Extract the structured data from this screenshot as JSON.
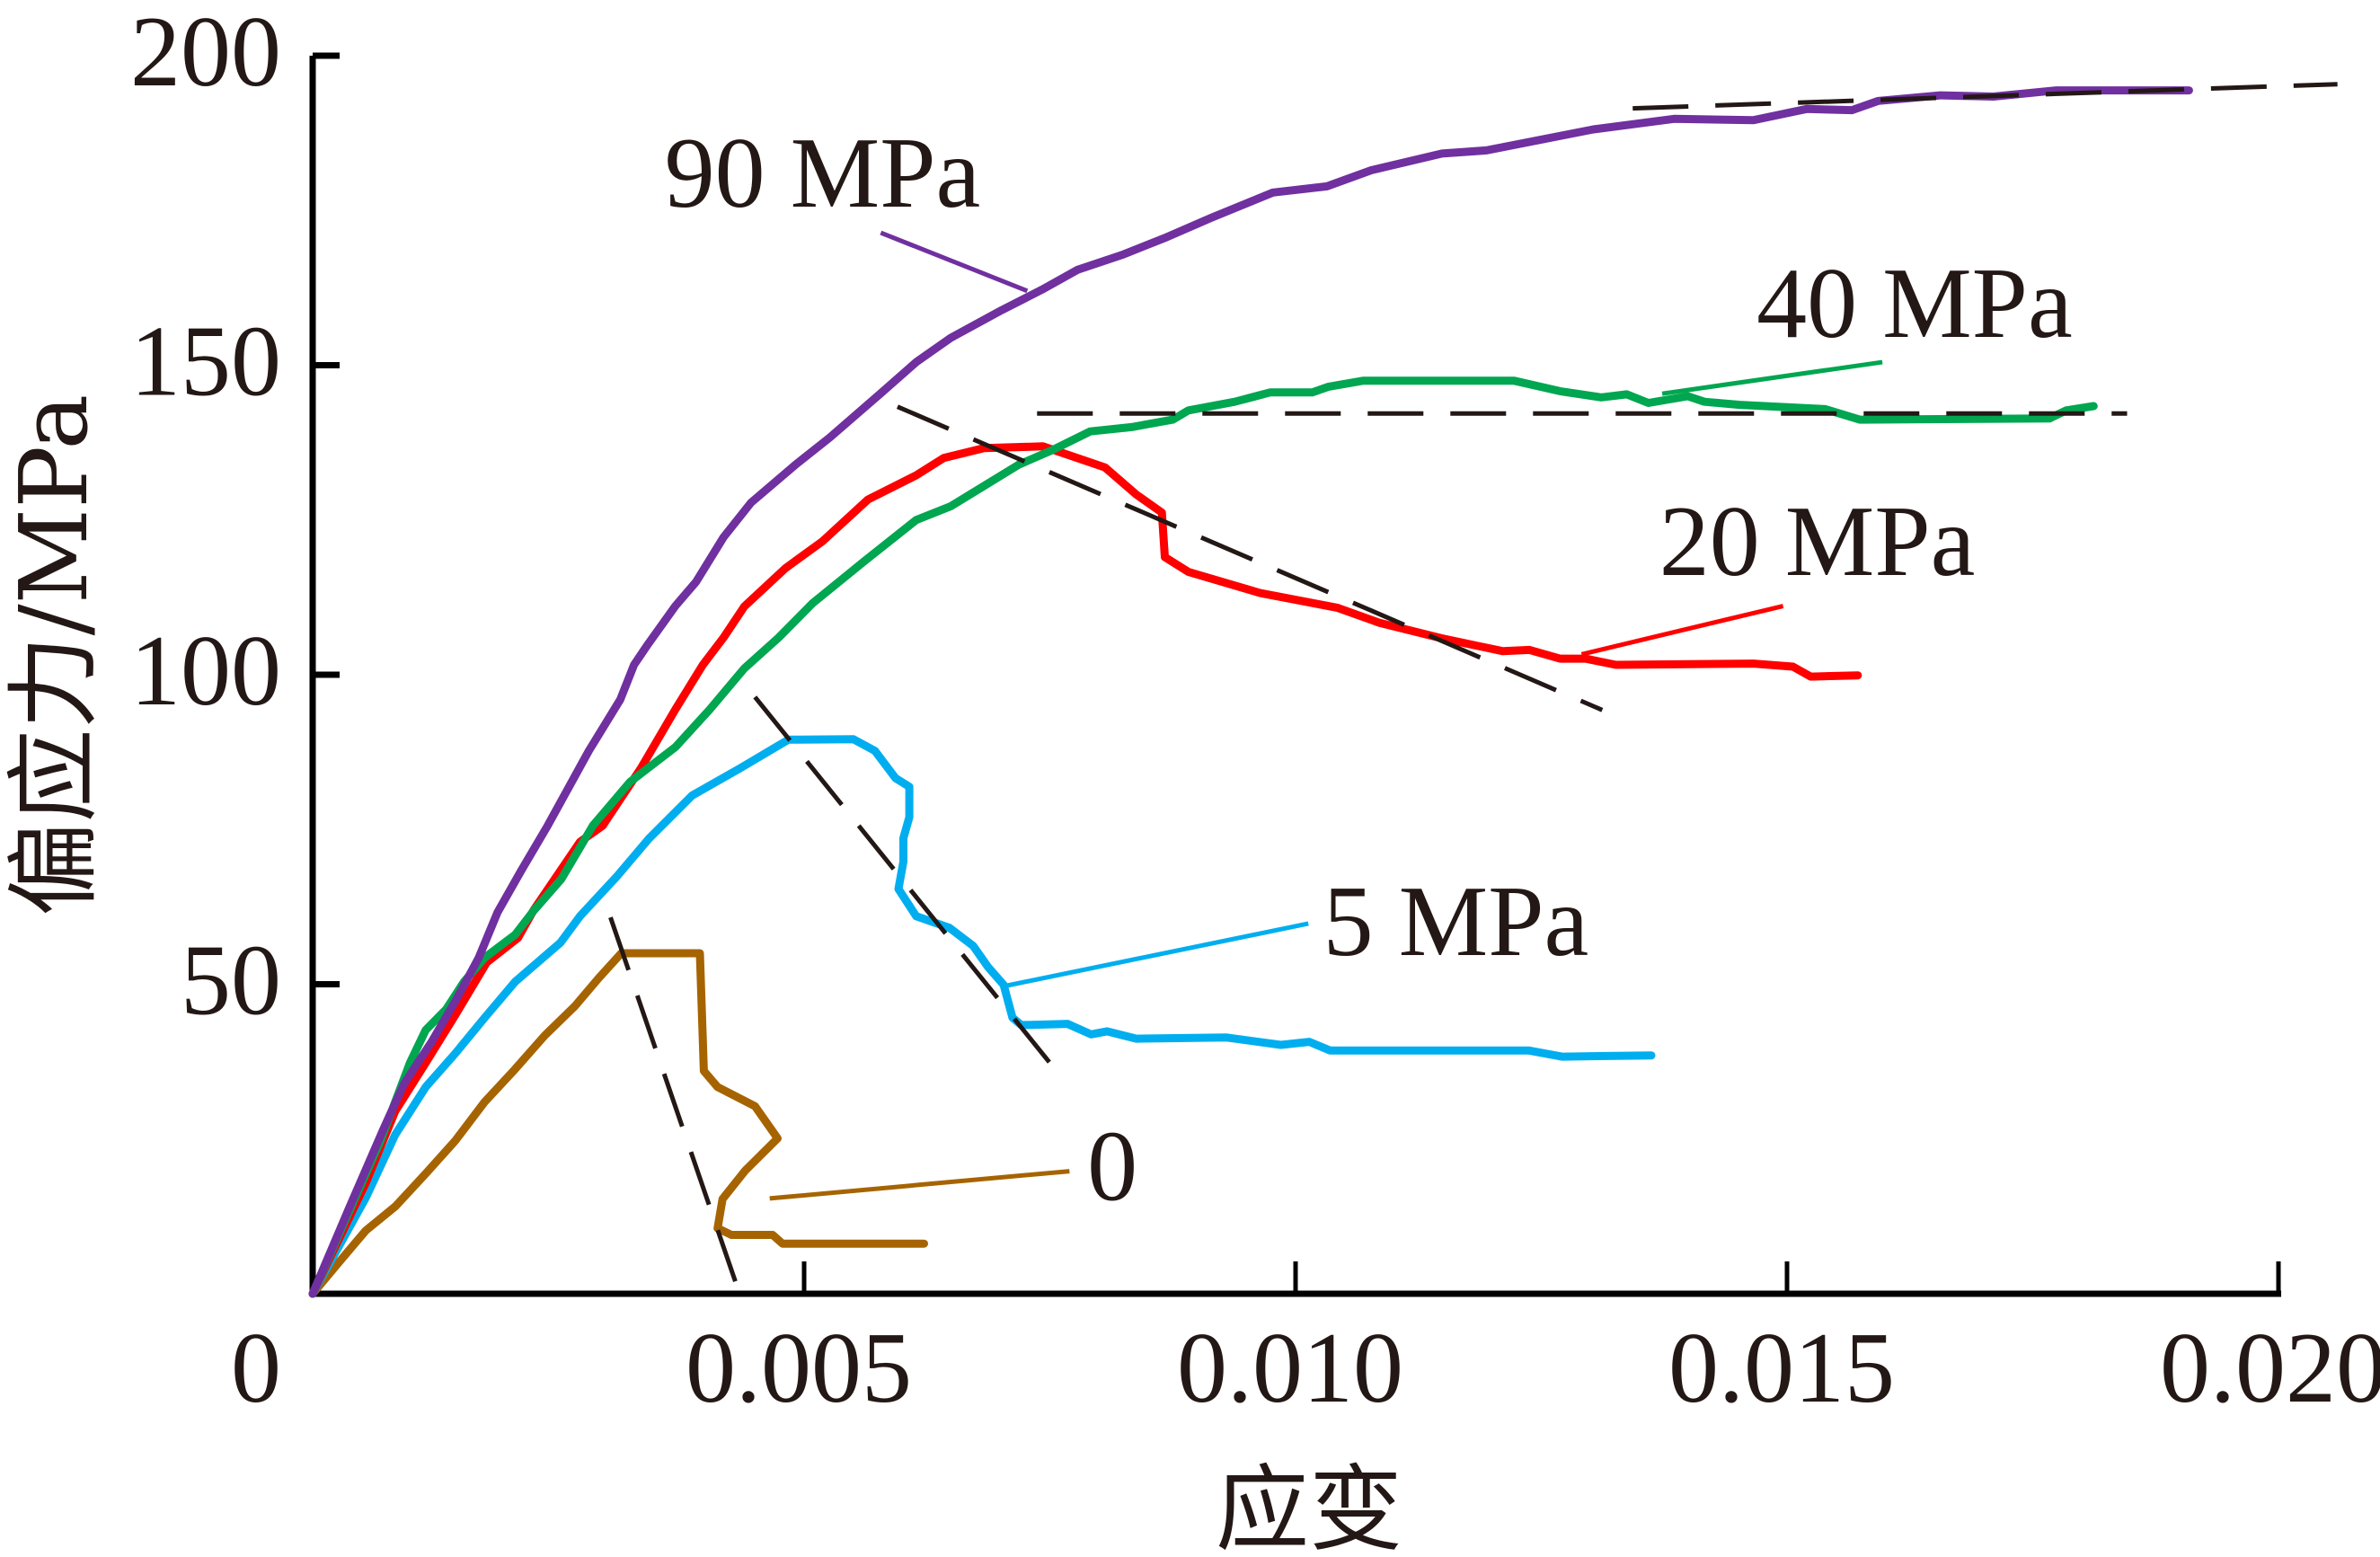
{
  "figure": {
    "background": "#ffffff",
    "text_color": "#231815",
    "axis_color": "#000000",
    "fit_line_color": "#231815"
  },
  "chart_data": {
    "type": "line",
    "title": "",
    "xlabel": "应变",
    "ylabel": "偏应力/MPa",
    "xlim": [
      0,
      0.02
    ],
    "ylim": [
      0,
      200
    ],
    "grid": false,
    "legend": "none (curves labelled directly with leader lines)",
    "origin_label": "0",
    "x_ticks": [
      0.005,
      0.01,
      0.015,
      0.02
    ],
    "x_tick_labels": [
      "0.005",
      "0.010",
      "0.015",
      "0.020"
    ],
    "y_ticks": [
      50,
      100,
      150,
      200
    ],
    "y_tick_labels": [
      "50",
      "100",
      "150",
      "200"
    ],
    "series": [
      {
        "name": "0",
        "label": "0",
        "color": "#a66400",
        "points": [
          [
            0,
            0
          ],
          [
            0.00023,
            4.4
          ],
          [
            0.00054,
            10.2
          ],
          [
            0.00084,
            14.1
          ],
          [
            0.00115,
            19.4
          ],
          [
            0.00145,
            24.7
          ],
          [
            0.00175,
            31.0
          ],
          [
            0.00206,
            36.3
          ],
          [
            0.00236,
            41.7
          ],
          [
            0.00267,
            46.5
          ],
          [
            0.00291,
            51.0
          ],
          [
            0.00314,
            55.0
          ],
          [
            0.00394,
            55.0
          ],
          [
            0.00398,
            36.0
          ],
          [
            0.00412,
            33.4
          ],
          [
            0.0045,
            30.3
          ],
          [
            0.00473,
            25.1
          ],
          [
            0.0044,
            19.9
          ],
          [
            0.00417,
            15.3
          ],
          [
            0.00412,
            10.6
          ],
          [
            0.00426,
            9.5
          ],
          [
            0.00468,
            9.5
          ],
          [
            0.00478,
            8.1
          ],
          [
            0.00622,
            8.1
          ]
        ],
        "fit_line": [
          [
            0.00303,
            60.8
          ],
          [
            0.0043,
            2.0
          ]
        ],
        "annotation": {
          "xy": [
            0.00465,
            15.4
          ],
          "leader_start": [
            0.0077,
            19.8
          ],
          "text_pos": [
            0.00788,
            15.2
          ]
        }
      },
      {
        "name": "5 MPa",
        "label": "5 MPa",
        "color": "#00aeef",
        "points": [
          [
            0,
            0
          ],
          [
            0.00054,
            15.5
          ],
          [
            0.00084,
            25.7
          ],
          [
            0.00115,
            33.4
          ],
          [
            0.00145,
            38.8
          ],
          [
            0.00175,
            44.6
          ],
          [
            0.00206,
            50.4
          ],
          [
            0.00252,
            56.7
          ],
          [
            0.00272,
            61.0
          ],
          [
            0.0031,
            67.5
          ],
          [
            0.00342,
            73.5
          ],
          [
            0.00386,
            80.5
          ],
          [
            0.00435,
            84.9
          ],
          [
            0.00484,
            89.5
          ],
          [
            0.0055,
            89.6
          ],
          [
            0.00572,
            87.7
          ],
          [
            0.00593,
            83.3
          ],
          [
            0.00607,
            81.9
          ],
          [
            0.00607,
            77.0
          ],
          [
            0.00601,
            73.6
          ],
          [
            0.00601,
            69.8
          ],
          [
            0.00596,
            65.4
          ],
          [
            0.00614,
            61.0
          ],
          [
            0.00648,
            59.1
          ],
          [
            0.00672,
            56.2
          ],
          [
            0.00687,
            52.8
          ],
          [
            0.00703,
            49.9
          ],
          [
            0.00712,
            44.6
          ],
          [
            0.00721,
            43.4
          ],
          [
            0.00768,
            43.6
          ],
          [
            0.00792,
            41.9
          ],
          [
            0.00808,
            42.4
          ],
          [
            0.00838,
            41.2
          ],
          [
            0.0093,
            41.4
          ],
          [
            0.00985,
            40.2
          ],
          [
            0.01014,
            40.7
          ],
          [
            0.01035,
            39.3
          ],
          [
            0.01237,
            39.3
          ],
          [
            0.01271,
            38.3
          ],
          [
            0.01362,
            38.5
          ]
        ],
        "fit_line": [
          [
            0.0045,
            96.4
          ],
          [
            0.0075,
            37.3
          ]
        ],
        "annotation": {
          "xy": [
            0.00707,
            49.8
          ],
          "leader_start": [
            0.01013,
            59.8
          ],
          "text_pos": [
            0.01028,
            54.7
          ]
        }
      },
      {
        "name": "20 MPa",
        "label": "20 MPa",
        "color": "#ff0000",
        "points": [
          [
            0,
            0
          ],
          [
            0.00054,
            17.9
          ],
          [
            0.00084,
            29.5
          ],
          [
            0.00115,
            37.3
          ],
          [
            0.00145,
            45.0
          ],
          [
            0.00177,
            53.5
          ],
          [
            0.00209,
            57.5
          ],
          [
            0.00225,
            62.0
          ],
          [
            0.00272,
            73.0
          ],
          [
            0.00295,
            75.6
          ],
          [
            0.00334,
            84.9
          ],
          [
            0.00369,
            94.4
          ],
          [
            0.00397,
            101.6
          ],
          [
            0.00418,
            106.0
          ],
          [
            0.00439,
            111.0
          ],
          [
            0.00481,
            117.2
          ],
          [
            0.00519,
            121.6
          ],
          [
            0.00565,
            128.3
          ],
          [
            0.00614,
            132.2
          ],
          [
            0.00642,
            135.0
          ],
          [
            0.00683,
            136.6
          ],
          [
            0.00743,
            136.9
          ],
          [
            0.00806,
            133.5
          ],
          [
            0.00838,
            129.1
          ],
          [
            0.00864,
            126.2
          ],
          [
            0.00867,
            119.0
          ],
          [
            0.00891,
            116.6
          ],
          [
            0.00964,
            113.2
          ],
          [
            0.01043,
            110.8
          ],
          [
            0.01085,
            108.4
          ],
          [
            0.01148,
            105.9
          ],
          [
            0.01211,
            103.8
          ],
          [
            0.01238,
            104.0
          ],
          [
            0.01269,
            102.6
          ],
          [
            0.01295,
            102.6
          ],
          [
            0.01326,
            101.6
          ],
          [
            0.01466,
            101.8
          ],
          [
            0.01506,
            101.3
          ],
          [
            0.01524,
            99.7
          ],
          [
            0.01572,
            99.9
          ]
        ],
        "fit_line": [
          [
            0.00595,
            143.3
          ],
          [
            0.01312,
            94.3
          ]
        ],
        "annotation": {
          "xy": [
            0.01291,
            103.3
          ],
          "leader_start": [
            0.01496,
            111.1
          ],
          "text_pos": [
            0.0137,
            116.1
          ]
        }
      },
      {
        "name": "40 MPa",
        "label": "40 MPa",
        "color": "#00a650",
        "points": [
          [
            0,
            0
          ],
          [
            0.00069,
            24.7
          ],
          [
            0.00099,
            37.3
          ],
          [
            0.00115,
            42.6
          ],
          [
            0.00136,
            46.0
          ],
          [
            0.00154,
            50.4
          ],
          [
            0.00175,
            54.3
          ],
          [
            0.00206,
            58.0
          ],
          [
            0.00225,
            61.9
          ],
          [
            0.00253,
            67.0
          ],
          [
            0.00285,
            75.6
          ],
          [
            0.00323,
            82.7
          ],
          [
            0.00369,
            88.3
          ],
          [
            0.00404,
            94.4
          ],
          [
            0.00439,
            101.0
          ],
          [
            0.00474,
            106.0
          ],
          [
            0.00509,
            111.6
          ],
          [
            0.00561,
            118.3
          ],
          [
            0.00614,
            125.0
          ],
          [
            0.00649,
            127.2
          ],
          [
            0.00683,
            130.5
          ],
          [
            0.00718,
            133.9
          ],
          [
            0.00754,
            136.4
          ],
          [
            0.00791,
            139.3
          ],
          [
            0.00833,
            140.0
          ],
          [
            0.00875,
            141.2
          ],
          [
            0.00891,
            142.7
          ],
          [
            0.00938,
            144.1
          ],
          [
            0.00974,
            145.6
          ],
          [
            0.01017,
            145.6
          ],
          [
            0.01033,
            146.5
          ],
          [
            0.01069,
            147.5
          ],
          [
            0.01222,
            147.5
          ],
          [
            0.01269,
            145.8
          ],
          [
            0.01311,
            144.8
          ],
          [
            0.01337,
            145.3
          ],
          [
            0.01359,
            143.9
          ],
          [
            0.01399,
            145.0
          ],
          [
            0.01416,
            144.1
          ],
          [
            0.01452,
            143.6
          ],
          [
            0.01539,
            142.9
          ],
          [
            0.01574,
            141.2
          ],
          [
            0.01767,
            141.4
          ],
          [
            0.01784,
            142.7
          ],
          [
            0.01812,
            143.4
          ]
        ],
        "fit_line": [
          [
            0.00737,
            142.2
          ],
          [
            0.01846,
            142.2
          ]
        ],
        "annotation": {
          "xy": [
            0.01373,
            145.4
          ],
          "leader_start": [
            0.01597,
            150.5
          ],
          "text_pos": [
            0.01469,
            154.6
          ]
        }
      },
      {
        "name": "90 MPa",
        "label": "90 MPa",
        "color": "#7030a0",
        "points": [
          [
            0,
            0
          ],
          [
            0.00038,
            14.2
          ],
          [
            0.00072,
            26.6
          ],
          [
            0.00093,
            33.9
          ],
          [
            0.00121,
            40.7
          ],
          [
            0.00145,
            47.2
          ],
          [
            0.00169,
            54.3
          ],
          [
            0.00188,
            61.6
          ],
          [
            0.00212,
            68.3
          ],
          [
            0.00239,
            75.6
          ],
          [
            0.00281,
            87.7
          ],
          [
            0.00313,
            96.0
          ],
          [
            0.00327,
            101.6
          ],
          [
            0.00341,
            104.9
          ],
          [
            0.00369,
            111.1
          ],
          [
            0.0039,
            115.0
          ],
          [
            0.00418,
            122.2
          ],
          [
            0.00446,
            127.8
          ],
          [
            0.00491,
            133.9
          ],
          [
            0.00526,
            138.3
          ],
          [
            0.00579,
            145.6
          ],
          [
            0.00614,
            150.5
          ],
          [
            0.00649,
            154.4
          ],
          [
            0.00701,
            158.9
          ],
          [
            0.00742,
            162.2
          ],
          [
            0.00778,
            165.4
          ],
          [
            0.00823,
            167.8
          ],
          [
            0.00869,
            170.7
          ],
          [
            0.00914,
            173.8
          ],
          [
            0.00977,
            177.9
          ],
          [
            0.01032,
            178.9
          ],
          [
            0.01077,
            181.5
          ],
          [
            0.01149,
            184.2
          ],
          [
            0.01194,
            184.7
          ],
          [
            0.01303,
            188.1
          ],
          [
            0.01385,
            189.8
          ],
          [
            0.01466,
            189.6
          ],
          [
            0.0152,
            191.4
          ],
          [
            0.01566,
            191.2
          ],
          [
            0.01593,
            192.7
          ],
          [
            0.01656,
            193.6
          ],
          [
            0.0171,
            193.4
          ],
          [
            0.01774,
            194.4
          ],
          [
            0.01909,
            194.4
          ]
        ],
        "fit_line": [
          [
            0.01343,
            191.5
          ],
          [
            0.0206,
            195.4
          ]
        ],
        "annotation": {
          "xy": [
            0.00727,
            162.0
          ],
          "leader_start": [
            0.00578,
            171.4
          ],
          "text_pos": [
            0.00358,
            175.6
          ]
        }
      }
    ]
  }
}
